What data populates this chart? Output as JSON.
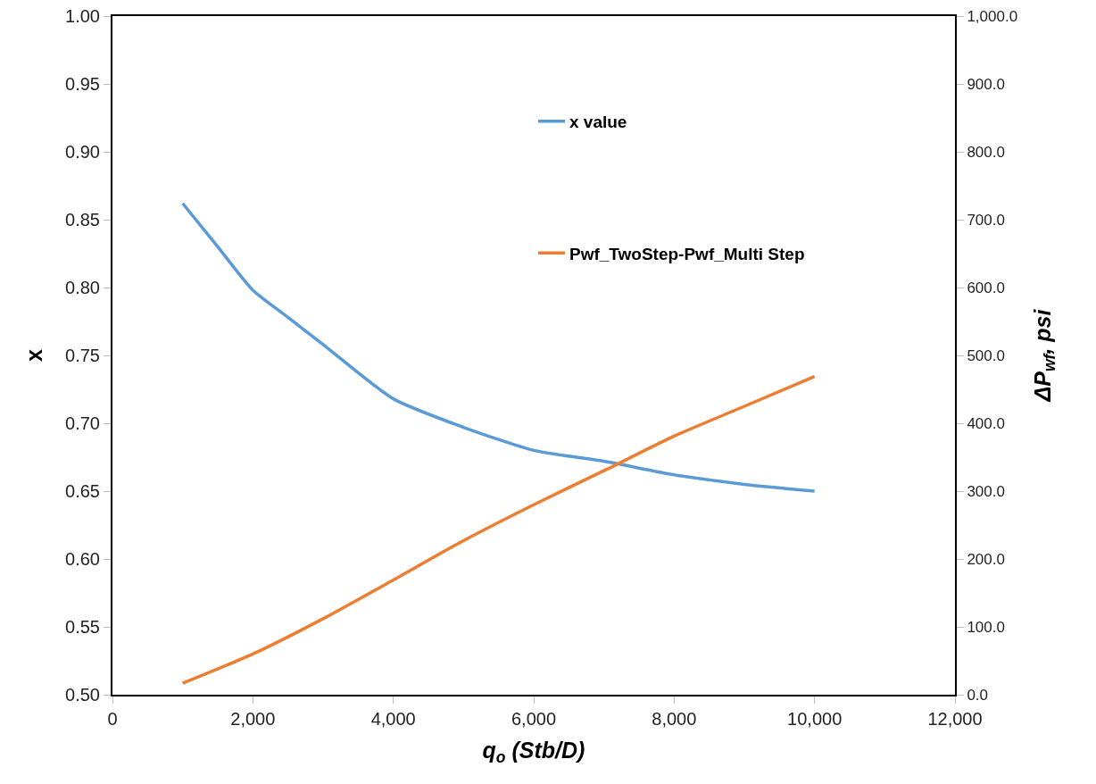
{
  "chart_data": {
    "type": "line",
    "xlabel": "q$_{o}$ (Stb/D)",
    "ylabel": "x",
    "y2label": "ΔP$_{wf}$, psi",
    "xlim": [
      0,
      12000
    ],
    "xticks": [
      0,
      {
        "value": 2000,
        "label": "2,000"
      },
      {
        "value": 4000,
        "label": "4,000"
      },
      {
        "value": 6000,
        "label": "6,000"
      },
      {
        "value": 8000,
        "label": "8,000"
      },
      {
        "value": 10000,
        "label": "10,000"
      },
      {
        "value": 12000,
        "label": "12,000"
      }
    ],
    "ylim": [
      0.5,
      1.0
    ],
    "yticks": [
      {
        "value": 0.5,
        "label": "0.50"
      },
      0.55,
      {
        "value": 0.6,
        "label": "0.60"
      },
      0.65,
      {
        "value": 0.7,
        "label": "0.70"
      },
      0.75,
      {
        "value": 0.8,
        "label": "0.80"
      },
      0.85,
      {
        "value": 0.9,
        "label": "0.90"
      },
      0.95,
      {
        "value": 1.0,
        "label": "1.00"
      }
    ],
    "y2lim": [
      0,
      1000
    ],
    "y2ticks": [
      {
        "value": 0,
        "label": "0.0"
      },
      {
        "value": 100,
        "label": "100.0"
      },
      {
        "value": 200,
        "label": "200.0"
      },
      {
        "value": 300,
        "label": "300.0"
      },
      {
        "value": 400,
        "label": "400.0"
      },
      {
        "value": 500,
        "label": "500.0"
      },
      {
        "value": 600,
        "label": "600.0"
      },
      {
        "value": 700,
        "label": "700.0"
      },
      {
        "value": 800,
        "label": "800.0"
      },
      {
        "value": 900,
        "label": "900.0"
      },
      {
        "value": 1000,
        "label": "1,000.0"
      }
    ],
    "grid": false,
    "legend": "top right",
    "marker": "none",
    "line_style": "solid",
    "series": [
      {
        "name": "x value",
        "color": "#5b9bd5",
        "x": [
          1000,
          1500,
          2000,
          2500,
          3000,
          4000,
          5000,
          6000,
          7000,
          8000,
          9000,
          10000
        ],
        "values": [
          0.862,
          0.83,
          0.798,
          0.778,
          0.758,
          0.718,
          0.697,
          0.68,
          0.672,
          0.662,
          0.655,
          0.65
        ]
      },
      {
        "name": "Pwf_TwoStep-Pwf_Multi Step",
        "color": "#ed7d31",
        "axis": "y2",
        "x": [
          1000,
          2000,
          3000,
          4000,
          5000,
          6000,
          7000,
          8000,
          9000,
          10000
        ],
        "values": [
          17,
          60,
          112,
          169,
          227,
          280,
          330,
          381,
          425,
          469
        ]
      }
    ]
  }
}
